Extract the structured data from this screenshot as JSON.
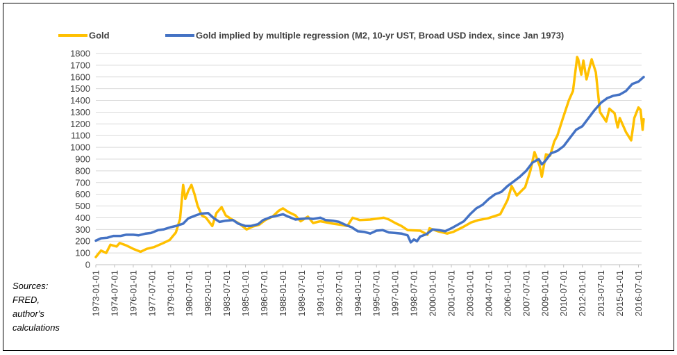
{
  "chart_data": {
    "type": "line",
    "title": "",
    "xlabel": "",
    "ylabel": "",
    "ylim": [
      0,
      1800
    ],
    "yticks": [
      0,
      100,
      200,
      300,
      400,
      500,
      600,
      700,
      800,
      900,
      1000,
      1100,
      1200,
      1300,
      1400,
      1500,
      1600,
      1700,
      1800
    ],
    "xlim": [
      "1973-01-01",
      "2016-10-01"
    ],
    "xticks": [
      "1973-01-01",
      "1974-07-01",
      "1976-01-01",
      "1977-07-01",
      "1979-01-01",
      "1980-07-01",
      "1982-01-01",
      "1983-07-01",
      "1985-01-01",
      "1986-07-01",
      "1988-01-01",
      "1989-07-01",
      "1991-01-01",
      "1992-07-01",
      "1994-01-01",
      "1995-07-01",
      "1997-01-01",
      "1998-07-01",
      "2000-01-01",
      "2001-07-01",
      "2003-01-01",
      "2004-07-01",
      "2006-01-01",
      "2007-07-01",
      "2009-01-01",
      "2010-07-01",
      "2012-01-01",
      "2013-07-01",
      "2015-01-01",
      "2016-07-01"
    ],
    "grid": "horizontal",
    "legend_position": "top",
    "series": [
      {
        "name": "Gold",
        "color": "#FFC000",
        "points": [
          [
            "1973-01-01",
            65
          ],
          [
            "1973-06-01",
            120
          ],
          [
            "1973-11-01",
            100
          ],
          [
            "1974-03-01",
            170
          ],
          [
            "1974-09-01",
            155
          ],
          [
            "1974-12-01",
            185
          ],
          [
            "1975-06-01",
            165
          ],
          [
            "1976-01-01",
            135
          ],
          [
            "1976-08-01",
            110
          ],
          [
            "1977-02-01",
            135
          ],
          [
            "1977-09-01",
            150
          ],
          [
            "1978-06-01",
            185
          ],
          [
            "1978-12-01",
            210
          ],
          [
            "1979-06-01",
            275
          ],
          [
            "1979-10-01",
            390
          ],
          [
            "1980-01-01",
            680
          ],
          [
            "1980-03-01",
            560
          ],
          [
            "1980-06-01",
            630
          ],
          [
            "1980-09-01",
            680
          ],
          [
            "1980-12-01",
            600
          ],
          [
            "1981-03-01",
            500
          ],
          [
            "1981-07-01",
            420
          ],
          [
            "1981-11-01",
            400
          ],
          [
            "1982-05-01",
            330
          ],
          [
            "1982-09-01",
            440
          ],
          [
            "1983-02-01",
            490
          ],
          [
            "1983-06-01",
            420
          ],
          [
            "1984-01-01",
            380
          ],
          [
            "1984-07-01",
            350
          ],
          [
            "1985-02-01",
            300
          ],
          [
            "1985-08-01",
            325
          ],
          [
            "1986-02-01",
            340
          ],
          [
            "1986-08-01",
            380
          ],
          [
            "1987-03-01",
            410
          ],
          [
            "1987-09-01",
            460
          ],
          [
            "1988-01-01",
            480
          ],
          [
            "1988-06-01",
            450
          ],
          [
            "1989-01-01",
            420
          ],
          [
            "1989-06-01",
            370
          ],
          [
            "1990-01-01",
            410
          ],
          [
            "1990-06-01",
            355
          ],
          [
            "1991-01-01",
            370
          ],
          [
            "1992-01-01",
            350
          ],
          [
            "1992-09-01",
            340
          ],
          [
            "1993-03-01",
            330
          ],
          [
            "1993-08-01",
            400
          ],
          [
            "1994-03-01",
            380
          ],
          [
            "1995-01-01",
            385
          ],
          [
            "1996-02-01",
            400
          ],
          [
            "1996-07-01",
            385
          ],
          [
            "1997-01-01",
            355
          ],
          [
            "1997-07-01",
            330
          ],
          [
            "1998-01-01",
            295
          ],
          [
            "1999-01-01",
            290
          ],
          [
            "1999-08-01",
            255
          ],
          [
            "1999-10-01",
            310
          ],
          [
            "2000-06-01",
            285
          ],
          [
            "2001-03-01",
            265
          ],
          [
            "2001-09-01",
            280
          ],
          [
            "2002-06-01",
            320
          ],
          [
            "2003-02-01",
            360
          ],
          [
            "2003-09-01",
            380
          ],
          [
            "2004-06-01",
            395
          ],
          [
            "2005-06-01",
            430
          ],
          [
            "2006-01-01",
            550
          ],
          [
            "2006-05-01",
            670
          ],
          [
            "2006-10-01",
            590
          ],
          [
            "2007-06-01",
            660
          ],
          [
            "2007-11-01",
            800
          ],
          [
            "2008-03-01",
            960
          ],
          [
            "2008-08-01",
            840
          ],
          [
            "2008-10-01",
            750
          ],
          [
            "2009-02-01",
            940
          ],
          [
            "2009-06-01",
            930
          ],
          [
            "2009-10-01",
            1050
          ],
          [
            "2010-01-01",
            1100
          ],
          [
            "2010-06-01",
            1240
          ],
          [
            "2010-12-01",
            1400
          ],
          [
            "2011-04-01",
            1480
          ],
          [
            "2011-08-01",
            1770
          ],
          [
            "2011-09-01",
            1750
          ],
          [
            "2011-12-01",
            1620
          ],
          [
            "2012-02-01",
            1740
          ],
          [
            "2012-05-01",
            1580
          ],
          [
            "2012-10-01",
            1750
          ],
          [
            "2013-02-01",
            1640
          ],
          [
            "2013-06-01",
            1300
          ],
          [
            "2013-12-01",
            1220
          ],
          [
            "2014-03-01",
            1330
          ],
          [
            "2014-08-01",
            1290
          ],
          [
            "2014-11-01",
            1170
          ],
          [
            "2015-01-01",
            1250
          ],
          [
            "2015-07-01",
            1130
          ],
          [
            "2015-12-01",
            1060
          ],
          [
            "2016-03-01",
            1250
          ],
          [
            "2016-07-01",
            1340
          ],
          [
            "2016-09-01",
            1320
          ],
          [
            "2016-11-01",
            1150
          ],
          [
            "2016-12-01",
            1240
          ]
        ]
      },
      {
        "name": "Gold implied by multiple regression (M2, 10-yr UST, Broad USD index, since Jan 1973)",
        "color": "#4472C4",
        "points": [
          [
            "1973-01-01",
            205
          ],
          [
            "1973-06-01",
            225
          ],
          [
            "1973-12-01",
            230
          ],
          [
            "1974-06-01",
            245
          ],
          [
            "1975-01-01",
            245
          ],
          [
            "1975-06-01",
            255
          ],
          [
            "1976-01-01",
            255
          ],
          [
            "1976-06-01",
            250
          ],
          [
            "1977-01-01",
            265
          ],
          [
            "1977-06-01",
            270
          ],
          [
            "1978-01-01",
            295
          ],
          [
            "1978-06-01",
            300
          ],
          [
            "1979-01-01",
            320
          ],
          [
            "1979-06-01",
            330
          ],
          [
            "1980-01-01",
            350
          ],
          [
            "1980-06-01",
            395
          ],
          [
            "1981-01-01",
            420
          ],
          [
            "1981-06-01",
            435
          ],
          [
            "1982-01-01",
            440
          ],
          [
            "1982-06-01",
            400
          ],
          [
            "1982-12-01",
            365
          ],
          [
            "1983-06-01",
            375
          ],
          [
            "1984-01-01",
            380
          ],
          [
            "1984-06-01",
            350
          ],
          [
            "1985-01-01",
            330
          ],
          [
            "1985-06-01",
            330
          ],
          [
            "1986-01-01",
            345
          ],
          [
            "1986-06-01",
            380
          ],
          [
            "1987-01-01",
            405
          ],
          [
            "1987-06-01",
            415
          ],
          [
            "1988-01-01",
            430
          ],
          [
            "1988-06-01",
            410
          ],
          [
            "1989-01-01",
            385
          ],
          [
            "1989-06-01",
            390
          ],
          [
            "1990-01-01",
            395
          ],
          [
            "1990-06-01",
            390
          ],
          [
            "1991-01-01",
            400
          ],
          [
            "1991-06-01",
            380
          ],
          [
            "1992-01-01",
            375
          ],
          [
            "1992-07-01",
            365
          ],
          [
            "1993-01-01",
            340
          ],
          [
            "1993-07-01",
            320
          ],
          [
            "1994-01-01",
            285
          ],
          [
            "1994-07-01",
            280
          ],
          [
            "1995-01-01",
            265
          ],
          [
            "1995-07-01",
            290
          ],
          [
            "1996-01-01",
            295
          ],
          [
            "1996-07-01",
            275
          ],
          [
            "1997-01-01",
            270
          ],
          [
            "1997-07-01",
            265
          ],
          [
            "1998-01-01",
            250
          ],
          [
            "1998-04-01",
            190
          ],
          [
            "1998-07-01",
            215
          ],
          [
            "1998-10-01",
            200
          ],
          [
            "1999-01-01",
            240
          ],
          [
            "1999-07-01",
            260
          ],
          [
            "2000-01-01",
            300
          ],
          [
            "2000-07-01",
            295
          ],
          [
            "2001-01-01",
            285
          ],
          [
            "2001-07-01",
            310
          ],
          [
            "2002-01-01",
            340
          ],
          [
            "2002-07-01",
            370
          ],
          [
            "2003-01-01",
            430
          ],
          [
            "2003-07-01",
            480
          ],
          [
            "2004-01-01",
            510
          ],
          [
            "2004-07-01",
            560
          ],
          [
            "2005-01-01",
            600
          ],
          [
            "2005-07-01",
            620
          ],
          [
            "2006-01-01",
            670
          ],
          [
            "2006-07-01",
            710
          ],
          [
            "2007-01-01",
            750
          ],
          [
            "2007-07-01",
            800
          ],
          [
            "2008-01-01",
            870
          ],
          [
            "2008-07-01",
            900
          ],
          [
            "2008-10-01",
            855
          ],
          [
            "2009-01-01",
            880
          ],
          [
            "2009-07-01",
            950
          ],
          [
            "2010-01-01",
            970
          ],
          [
            "2010-07-01",
            1010
          ],
          [
            "2011-01-01",
            1080
          ],
          [
            "2011-07-01",
            1150
          ],
          [
            "2012-01-01",
            1180
          ],
          [
            "2012-07-01",
            1250
          ],
          [
            "2013-01-01",
            1320
          ],
          [
            "2013-07-01",
            1380
          ],
          [
            "2014-01-01",
            1420
          ],
          [
            "2014-07-01",
            1440
          ],
          [
            "2015-01-01",
            1450
          ],
          [
            "2015-07-01",
            1480
          ],
          [
            "2016-01-01",
            1540
          ],
          [
            "2016-07-01",
            1560
          ],
          [
            "2016-12-01",
            1600
          ]
        ]
      }
    ]
  },
  "sources_note": [
    "Sources:",
    "FRED,",
    "author's",
    "calculations"
  ]
}
